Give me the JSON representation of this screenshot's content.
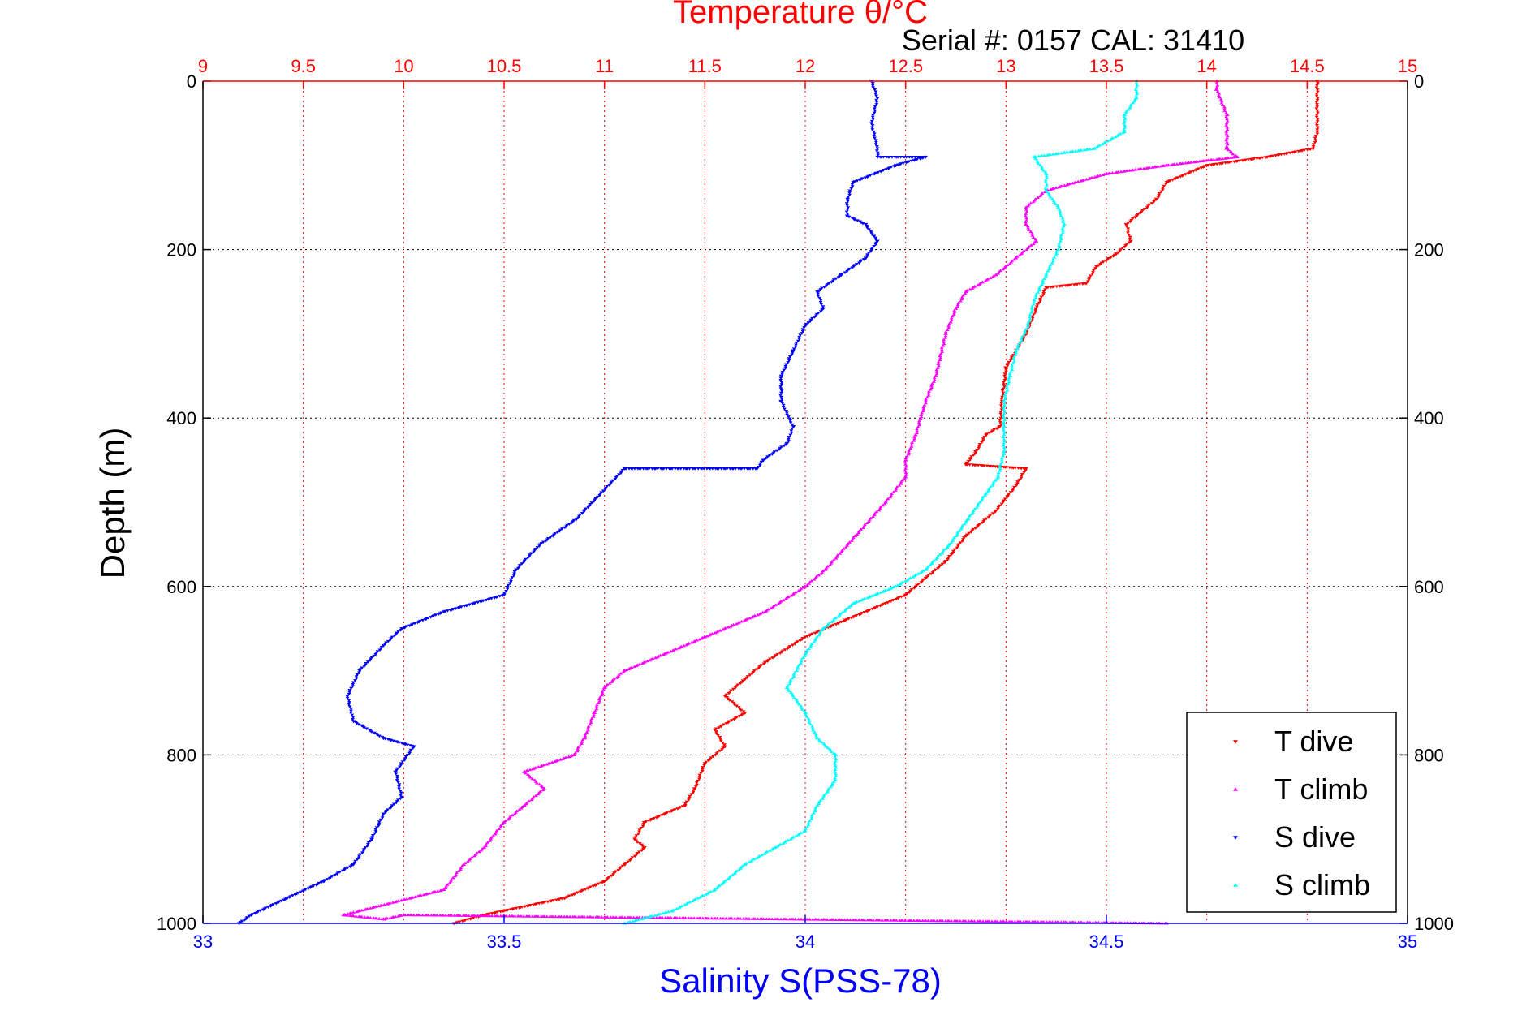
{
  "chart_data": {
    "type": "scatter",
    "title": "Temperature θ/°C",
    "subtitle": "Serial #: 0157  CAL: 31410",
    "xlabel": "Salinity S(PSS-78)",
    "ylabel": "Depth (m)",
    "temp_axis": {
      "lim": [
        9,
        15
      ],
      "ticks": [
        9,
        9.5,
        10,
        10.5,
        11,
        11.5,
        12,
        12.5,
        13,
        13.5,
        14,
        14.5,
        15
      ]
    },
    "sal_axis": {
      "lim": [
        33,
        35
      ],
      "ticks": [
        33,
        33.5,
        34,
        34.5,
        35
      ]
    },
    "depth_axis": {
      "lim": [
        0,
        1000
      ],
      "ticks": [
        0,
        200,
        400,
        600,
        800,
        1000
      ],
      "reversed": true
    },
    "grid": true,
    "legend_position": "bottom-right",
    "series": [
      {
        "name": "T dive",
        "color": "#ff0000",
        "axis": "temperature",
        "marker": "triangle-down",
        "points": [
          [
            14.55,
            0
          ],
          [
            14.55,
            30
          ],
          [
            14.55,
            60
          ],
          [
            14.53,
            80
          ],
          [
            14.3,
            90
          ],
          [
            14.0,
            100
          ],
          [
            13.8,
            120
          ],
          [
            13.75,
            140
          ],
          [
            13.65,
            160
          ],
          [
            13.6,
            170
          ],
          [
            13.62,
            190
          ],
          [
            13.55,
            205
          ],
          [
            13.45,
            220
          ],
          [
            13.4,
            240
          ],
          [
            13.2,
            245
          ],
          [
            13.15,
            270
          ],
          [
            13.1,
            300
          ],
          [
            13.0,
            340
          ],
          [
            12.98,
            380
          ],
          [
            12.97,
            410
          ],
          [
            12.9,
            420
          ],
          [
            12.85,
            440
          ],
          [
            12.8,
            455
          ],
          [
            13.1,
            460
          ],
          [
            13.05,
            480
          ],
          [
            12.95,
            510
          ],
          [
            12.8,
            540
          ],
          [
            12.7,
            570
          ],
          [
            12.6,
            590
          ],
          [
            12.5,
            610
          ],
          [
            12.4,
            620
          ],
          [
            12.2,
            640
          ],
          [
            12.0,
            660
          ],
          [
            11.8,
            690
          ],
          [
            11.7,
            710
          ],
          [
            11.6,
            730
          ],
          [
            11.7,
            750
          ],
          [
            11.55,
            770
          ],
          [
            11.6,
            790
          ],
          [
            11.5,
            810
          ],
          [
            11.45,
            840
          ],
          [
            11.4,
            860
          ],
          [
            11.2,
            880
          ],
          [
            11.15,
            900
          ],
          [
            11.2,
            910
          ],
          [
            11.1,
            930
          ],
          [
            11.0,
            950
          ],
          [
            10.8,
            970
          ],
          [
            10.5,
            985
          ],
          [
            10.4,
            990
          ],
          [
            10.25,
            1000
          ]
        ]
      },
      {
        "name": "T climb",
        "color": "#ff00ff",
        "axis": "temperature",
        "marker": "triangle-up",
        "points": [
          [
            13.8,
            1000
          ],
          [
            10.0,
            990
          ],
          [
            9.9,
            995
          ],
          [
            9.7,
            990
          ],
          [
            10.2,
            960
          ],
          [
            10.3,
            930
          ],
          [
            10.4,
            910
          ],
          [
            10.5,
            880
          ],
          [
            10.6,
            860
          ],
          [
            10.7,
            840
          ],
          [
            10.6,
            820
          ],
          [
            10.85,
            800
          ],
          [
            10.9,
            780
          ],
          [
            10.95,
            750
          ],
          [
            11.0,
            720
          ],
          [
            11.1,
            700
          ],
          [
            11.3,
            680
          ],
          [
            11.5,
            660
          ],
          [
            11.8,
            630
          ],
          [
            12.0,
            600
          ],
          [
            12.1,
            580
          ],
          [
            12.25,
            540
          ],
          [
            12.4,
            500
          ],
          [
            12.5,
            470
          ],
          [
            12.5,
            450
          ],
          [
            12.55,
            420
          ],
          [
            12.6,
            380
          ],
          [
            12.65,
            350
          ],
          [
            12.7,
            300
          ],
          [
            12.75,
            270
          ],
          [
            12.8,
            250
          ],
          [
            12.95,
            230
          ],
          [
            13.05,
            210
          ],
          [
            13.15,
            190
          ],
          [
            13.1,
            170
          ],
          [
            13.1,
            150
          ],
          [
            13.2,
            130
          ],
          [
            13.5,
            110
          ],
          [
            13.8,
            100
          ],
          [
            14.15,
            90
          ],
          [
            14.1,
            80
          ],
          [
            14.1,
            40
          ],
          [
            14.05,
            10
          ],
          [
            14.05,
            0
          ]
        ]
      },
      {
        "name": "S dive",
        "color": "#0000ff",
        "axis": "salinity",
        "marker": "triangle-down",
        "points": [
          [
            34.11,
            0
          ],
          [
            34.12,
            20
          ],
          [
            34.11,
            50
          ],
          [
            34.12,
            80
          ],
          [
            34.12,
            90
          ],
          [
            34.2,
            90
          ],
          [
            34.15,
            100
          ],
          [
            34.08,
            120
          ],
          [
            34.07,
            140
          ],
          [
            34.07,
            160
          ],
          [
            34.1,
            170
          ],
          [
            34.12,
            190
          ],
          [
            34.1,
            210
          ],
          [
            34.06,
            230
          ],
          [
            34.02,
            250
          ],
          [
            34.03,
            270
          ],
          [
            34.0,
            290
          ],
          [
            33.98,
            320
          ],
          [
            33.96,
            350
          ],
          [
            33.96,
            380
          ],
          [
            33.98,
            410
          ],
          [
            33.97,
            430
          ],
          [
            33.93,
            450
          ],
          [
            33.92,
            460
          ],
          [
            33.7,
            460
          ],
          [
            33.66,
            490
          ],
          [
            33.62,
            520
          ],
          [
            33.56,
            550
          ],
          [
            33.52,
            580
          ],
          [
            33.5,
            610
          ],
          [
            33.4,
            630
          ],
          [
            33.33,
            650
          ],
          [
            33.3,
            670
          ],
          [
            33.26,
            700
          ],
          [
            33.24,
            730
          ],
          [
            33.25,
            760
          ],
          [
            33.3,
            780
          ],
          [
            33.35,
            790
          ],
          [
            33.32,
            820
          ],
          [
            33.33,
            850
          ],
          [
            33.3,
            870
          ],
          [
            33.28,
            900
          ],
          [
            33.25,
            930
          ],
          [
            33.2,
            950
          ],
          [
            33.14,
            970
          ],
          [
            33.08,
            990
          ],
          [
            33.06,
            1000
          ]
        ]
      },
      {
        "name": "S climb",
        "color": "#00ffff",
        "axis": "salinity",
        "marker": "triangle-up",
        "points": [
          [
            33.7,
            1000
          ],
          [
            33.78,
            985
          ],
          [
            33.85,
            960
          ],
          [
            33.9,
            930
          ],
          [
            33.95,
            910
          ],
          [
            34.0,
            890
          ],
          [
            34.02,
            860
          ],
          [
            34.05,
            830
          ],
          [
            34.05,
            800
          ],
          [
            34.02,
            780
          ],
          [
            34.0,
            750
          ],
          [
            33.97,
            720
          ],
          [
            34.0,
            680
          ],
          [
            34.03,
            650
          ],
          [
            34.08,
            620
          ],
          [
            34.15,
            600
          ],
          [
            34.2,
            580
          ],
          [
            34.24,
            550
          ],
          [
            34.27,
            520
          ],
          [
            34.3,
            490
          ],
          [
            34.32,
            470
          ],
          [
            34.33,
            440
          ],
          [
            34.33,
            410
          ],
          [
            34.33,
            380
          ],
          [
            34.34,
            350
          ],
          [
            34.35,
            320
          ],
          [
            34.37,
            290
          ],
          [
            34.38,
            260
          ],
          [
            34.4,
            230
          ],
          [
            34.42,
            200
          ],
          [
            34.43,
            170
          ],
          [
            34.42,
            150
          ],
          [
            34.4,
            130
          ],
          [
            34.4,
            110
          ],
          [
            34.38,
            90
          ],
          [
            34.48,
            80
          ],
          [
            34.53,
            60
          ],
          [
            34.53,
            40
          ],
          [
            34.55,
            20
          ],
          [
            34.55,
            0
          ]
        ]
      }
    ]
  }
}
